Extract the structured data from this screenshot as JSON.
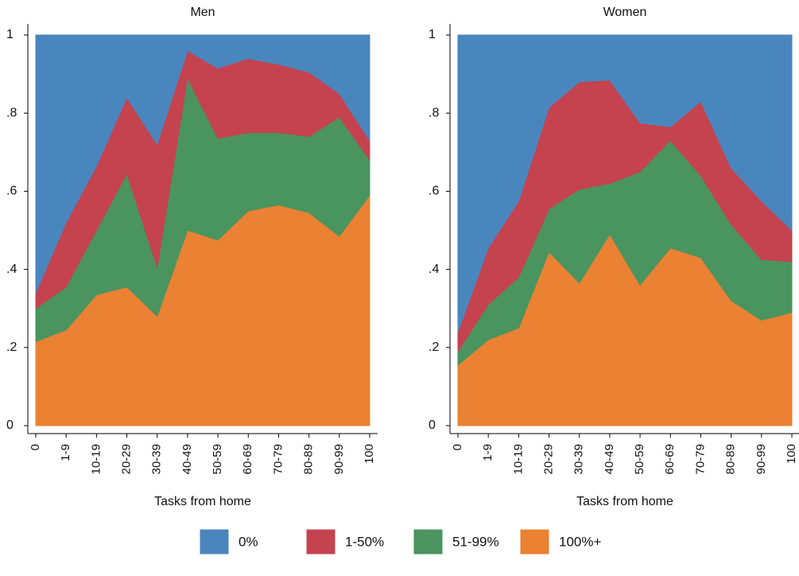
{
  "chart_data": [
    {
      "type": "area",
      "title": "Men",
      "xlabel": "Tasks from home",
      "categories": [
        "0",
        "1-9",
        "10-19",
        "20-29",
        "30-39",
        "40-49",
        "50-59",
        "60-69",
        "70-79",
        "80-89",
        "90-99",
        "100"
      ],
      "stacked": true,
      "ylim": [
        0,
        1
      ],
      "yticks": [
        0,
        {
          "value": 0.2,
          "label": ".2"
        },
        {
          "value": 0.4,
          "label": ".4"
        },
        {
          "value": 0.6,
          "label": ".6"
        },
        {
          "value": 0.8,
          "label": ".8"
        },
        1
      ],
      "series": [
        {
          "name": "0%",
          "color": "#4a86be",
          "values": [
            0.66,
            0.48,
            0.335,
            0.16,
            0.28,
            0.04,
            0.085,
            0.06,
            0.075,
            0.095,
            0.15,
            0.27
          ]
        },
        {
          "name": "1-50%",
          "color": "#c4434f",
          "values": [
            0.04,
            0.165,
            0.165,
            0.195,
            0.315,
            0.07,
            0.18,
            0.19,
            0.175,
            0.165,
            0.06,
            0.05
          ]
        },
        {
          "name": "51-99%",
          "color": "#4a9460",
          "values": [
            0.085,
            0.11,
            0.165,
            0.29,
            0.125,
            0.39,
            0.26,
            0.2,
            0.185,
            0.195,
            0.305,
            0.09
          ]
        },
        {
          "name": "100%+",
          "color": "#eb8132",
          "values": [
            0.215,
            0.245,
            0.335,
            0.355,
            0.28,
            0.5,
            0.475,
            0.55,
            0.565,
            0.545,
            0.485,
            0.59
          ]
        }
      ]
    },
    {
      "type": "area",
      "title": "Women",
      "xlabel": "Tasks from home",
      "categories": [
        "0",
        "1-9",
        "10-19",
        "20-29",
        "30-39",
        "40-49",
        "50-59",
        "60-69",
        "70-79",
        "80-89",
        "90-99",
        "100"
      ],
      "stacked": true,
      "ylim": [
        0,
        1
      ],
      "yticks": [
        0,
        {
          "value": 0.2,
          "label": ".2"
        },
        {
          "value": 0.4,
          "label": ".4"
        },
        {
          "value": 0.6,
          "label": ".6"
        },
        {
          "value": 0.8,
          "label": ".8"
        },
        1
      ],
      "series": [
        {
          "name": "0%",
          "color": "#4a86be",
          "values": [
            0.76,
            0.545,
            0.425,
            0.185,
            0.12,
            0.115,
            0.225,
            0.235,
            0.17,
            0.34,
            0.425,
            0.5
          ]
        },
        {
          "name": "1-50%",
          "color": "#c4434f",
          "values": [
            0.05,
            0.145,
            0.195,
            0.26,
            0.275,
            0.265,
            0.125,
            0.035,
            0.19,
            0.145,
            0.15,
            0.08
          ]
        },
        {
          "name": "51-99%",
          "color": "#4a9460",
          "values": [
            0.035,
            0.09,
            0.13,
            0.11,
            0.24,
            0.13,
            0.29,
            0.275,
            0.21,
            0.195,
            0.155,
            0.13
          ]
        },
        {
          "name": "100%+",
          "color": "#eb8132",
          "values": [
            0.155,
            0.22,
            0.25,
            0.445,
            0.365,
            0.49,
            0.36,
            0.455,
            0.43,
            0.32,
            0.27,
            0.29
          ]
        }
      ]
    }
  ]
}
